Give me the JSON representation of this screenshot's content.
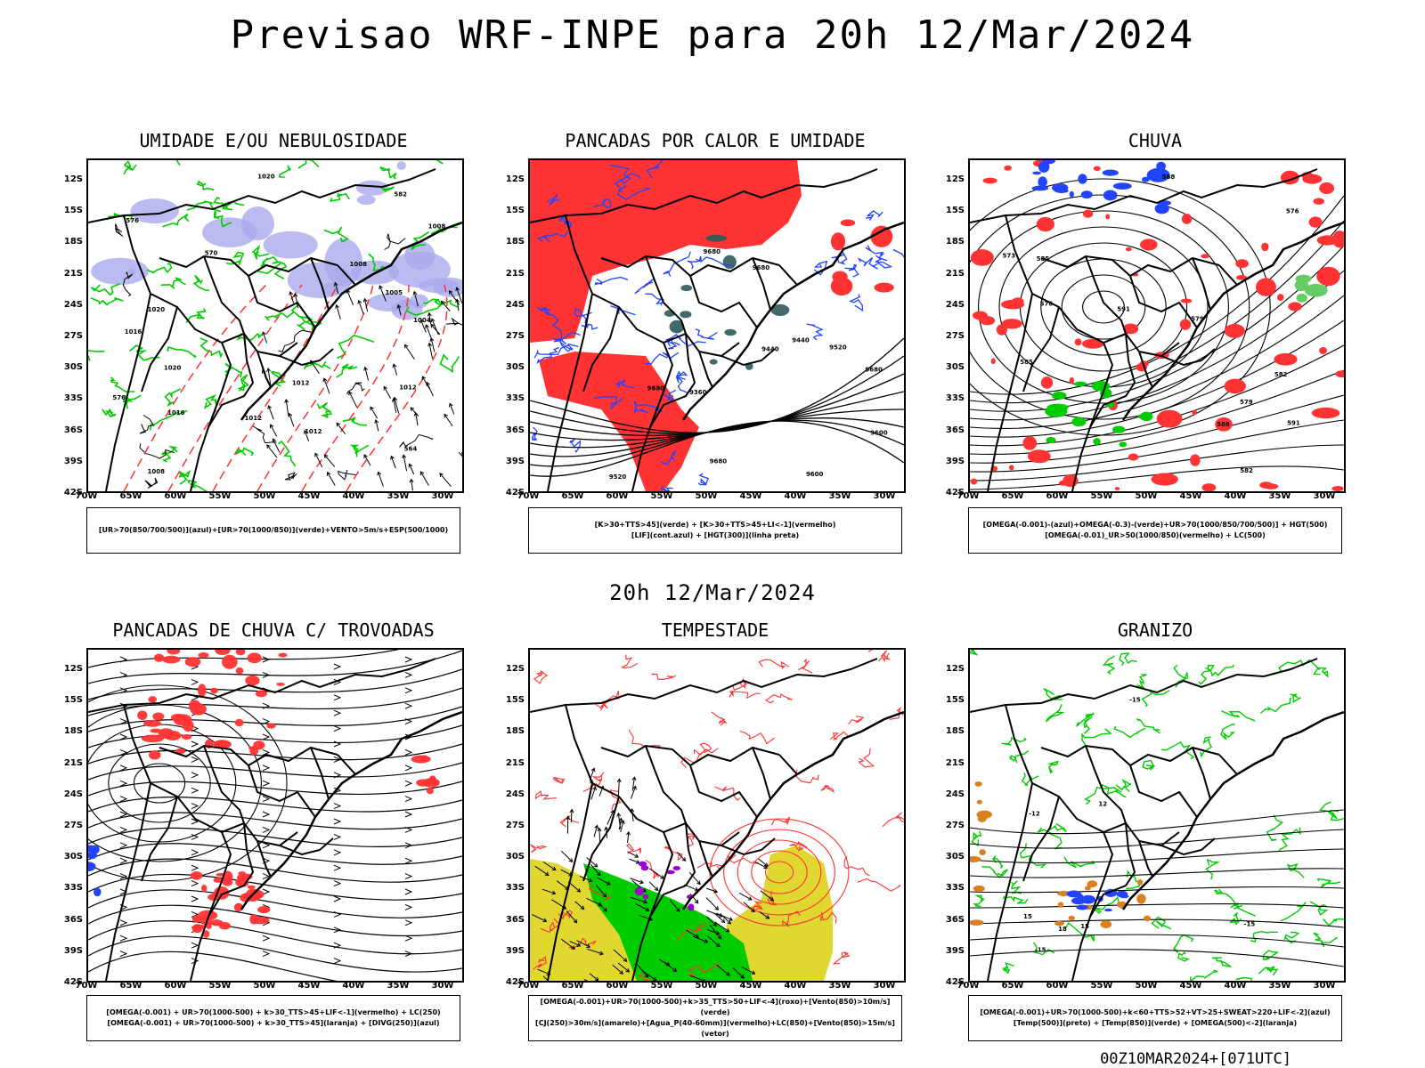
{
  "title": "Previsao WRF-INPE  para 20h 12/Mar/2024",
  "subtitle": "20h 12/Mar/2024",
  "footer": "00Z10MAR2024+[071UTC]",
  "lat_ticks": [
    "12S",
    "15S",
    "18S",
    "21S",
    "24S",
    "27S",
    "30S",
    "33S",
    "36S",
    "39S",
    "42S"
  ],
  "lon_ticks": [
    "70W",
    "65W",
    "60W",
    "55W",
    "50W",
    "45W",
    "40W",
    "35W",
    "30W"
  ],
  "colors": {
    "blue_contour": "#2244ff",
    "green_contour": "#00cc00",
    "red_fill": "#ff3333",
    "lavender_fill": "#aaaaee",
    "yellow_fill": "#e0d830",
    "orange": "#d98020",
    "purple": "#9900cc"
  },
  "panels": [
    {
      "title": "UMIDADE E/OU NEBULOSIDADE",
      "legend": [
        "[UR>70(850/700/500)](azul)+[UR>70(1000/850)](verde)+VENTO>5m/s+ESP(500/1000)"
      ],
      "contour_labels": [
        "1012",
        "1012",
        "1016",
        "1008",
        "1012",
        "1008",
        "1004",
        "1008",
        "1012",
        "1020",
        "1020",
        "1020",
        "1016",
        "576",
        "576",
        "570",
        "582",
        "564",
        "1005"
      ]
    },
    {
      "title": "PANCADAS POR CALOR E UMIDADE",
      "legend": [
        "[K>30+TTS>45](verde) + [K>30+TTS>45+LI<-1](vermelho)",
        "[LIF](cont.azul) + [HGT(300)](linha preta)"
      ],
      "contour_labels": [
        "9680",
        "9680",
        "9680",
        "9680",
        "9680",
        "9600",
        "9520",
        "9440",
        "9360",
        "9600",
        "9520",
        "9440"
      ]
    },
    {
      "title": "CHUVA",
      "legend": [
        "[OMEGA(-0.001)-(azul)+OMEGA(-0.3)-(verde)+UR>70(1000/850/700/500)] + HGT(500)",
        "[OMEGA(-0.01)_UR>50(1000/850)(vermelho) + LC(500)"
      ],
      "contour_labels": [
        "591",
        "591",
        "588",
        "585",
        "582",
        "579",
        "576",
        "573",
        "588",
        "585",
        "582",
        "579",
        "576"
      ]
    },
    {
      "title": "PANCADAS DE CHUVA C/ TROVOADAS",
      "legend": [
        "[OMEGA(-0.001) + UR>70(1000-500) + k>30_TTS>45+LIF<-1](vermelho) + LC(250)",
        "[OMEGA(-0.001) + UR>70(1000-500) + k>30_TTS>45](laranja) + [DIVG(250)](azul)"
      ],
      "contour_labels": []
    },
    {
      "title": "TEMPESTADE",
      "legend": [
        "[OMEGA(-0.001)+UR>70(1000-500)+k>35_TTS>50+LIF<-4](roxo)+[Vento(850)>10m/s](verde)",
        "[CJ(250)>30m/s](amarelo)+[Agua_P(40-60mm)](vermelho)+LC(850)+[Vento(850)>15m/s](vetor)"
      ],
      "contour_labels": []
    },
    {
      "title": "GRANIZO",
      "legend": [
        "[OMEGA(-0.001)+UR>70(1000-500)+k<60+TTS>52+VT>25+SWEAT>220+LIF<-2](azul)",
        "[Temp(500)](preto) + [Temp(850)](verde) + [OMEGA(500)<-2](laranja)"
      ],
      "contour_labels": [
        "-15",
        "-15",
        "-15",
        "12",
        "15",
        "18",
        "15",
        "-12"
      ]
    }
  ]
}
